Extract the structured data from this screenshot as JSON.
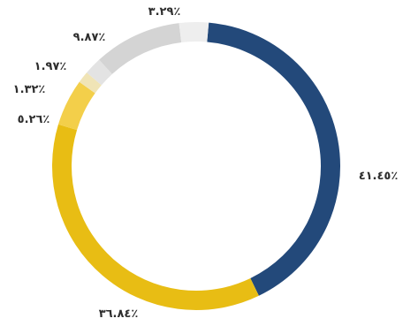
{
  "chart_data": {
    "type": "pie",
    "style": "donut",
    "slices": [
      {
        "label": "٪٤١.٤٥",
        "value": 41.45,
        "color": "#23497a"
      },
      {
        "label": "٪٣٦.٨٤",
        "value": 36.84,
        "color": "#e8bd14"
      },
      {
        "label": "٪٥.٢٦",
        "value": 5.26,
        "color": "#f3cf4a"
      },
      {
        "label": "٪١.٣٢",
        "value": 1.32,
        "color": "#f0e4b6"
      },
      {
        "label": "٪١.٩٧",
        "value": 1.97,
        "color": "#e3e3e3"
      },
      {
        "label": "٪٩.٨٧",
        "value": 9.87,
        "color": "#d4d4d4"
      },
      {
        "label": "٪٣.٢٩",
        "value": 3.29,
        "color": "#eeeeee"
      }
    ],
    "legend": false
  }
}
